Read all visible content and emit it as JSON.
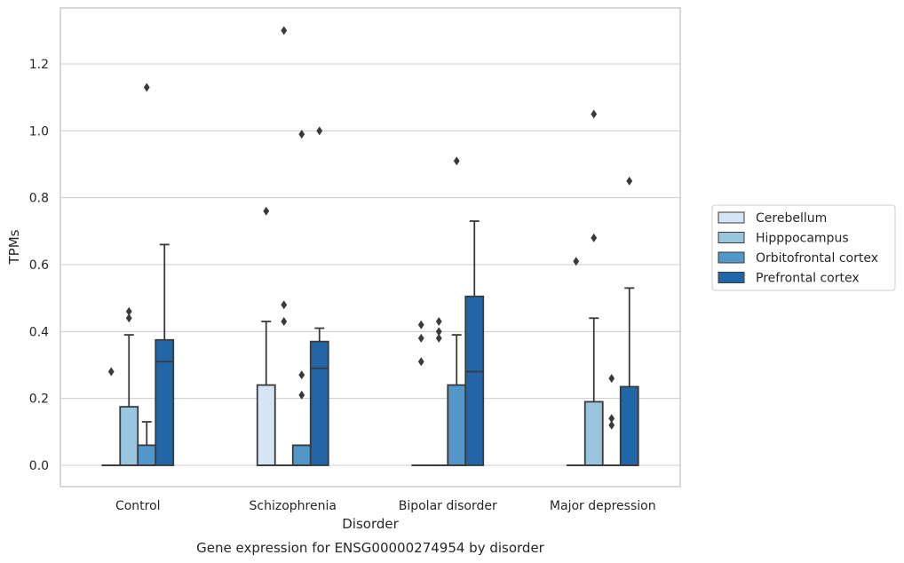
{
  "chart_data": {
    "type": "box",
    "title": "",
    "caption": "Gene expression for ENSG00000274954 by disorder",
    "xlabel": "Disorder",
    "ylabel": "TPMs",
    "ylim": [
      -0.065,
      1.38
    ],
    "yticks": [
      "0.0",
      "0.2",
      "0.4",
      "0.6",
      "0.8",
      "1.0",
      "1.2"
    ],
    "grid": "horizontal",
    "legend_position": "right",
    "categories": [
      "Control",
      "Schizophrenia",
      "Bipolar disorder",
      "Major depression"
    ],
    "series": [
      {
        "name": "Cerebellum",
        "color": "#d6e5f4",
        "boxes": [
          {
            "q1": 0,
            "median": 0,
            "q3": 0,
            "whisker_low": 0,
            "whisker_high": 0,
            "outliers": []
          },
          {
            "q1": 0,
            "median": 0,
            "q3": 0.24,
            "whisker_low": 0,
            "whisker_high": 0.43,
            "outliers": [
              0.76
            ]
          },
          {
            "q1": 0,
            "median": 0,
            "q3": 0,
            "whisker_low": 0,
            "whisker_high": 0,
            "outliers": [
              0.31,
              0.38,
              0.42
            ]
          },
          {
            "q1": 0,
            "median": 0,
            "q3": 0,
            "whisker_low": 0,
            "whisker_high": 0,
            "outliers": [
              0.61
            ]
          }
        ]
      },
      {
        "name": "Hipppocampus",
        "color": "#9ac5df",
        "boxes": [
          {
            "q1": 0,
            "median": 0,
            "q3": 0.175,
            "whisker_low": 0,
            "whisker_high": 0.39,
            "outliers": [
              0.44,
              0.46
            ]
          },
          {
            "q1": 0,
            "median": 0,
            "q3": 0,
            "whisker_low": 0,
            "whisker_high": 0,
            "outliers": [
              0.43,
              0.48,
              1.3
            ]
          },
          {
            "q1": 0,
            "median": 0,
            "q3": 0,
            "whisker_low": 0,
            "whisker_high": 0,
            "outliers": [
              0.38,
              0.4,
              0.43
            ]
          },
          {
            "q1": 0,
            "median": 0,
            "q3": 0.19,
            "whisker_low": 0,
            "whisker_high": 0.44,
            "outliers": [
              0.68,
              1.05
            ]
          }
        ]
      },
      {
        "name": "Orbitofrontal cortex",
        "color": "#5396c8",
        "boxes": [
          {
            "q1": 0,
            "median": 0,
            "q3": 0.06,
            "whisker_low": 0,
            "whisker_high": 0.13,
            "outliers": [
              1.13
            ]
          },
          {
            "q1": 0,
            "median": 0,
            "q3": 0.06,
            "whisker_low": 0,
            "whisker_high": 0.06,
            "outliers": [
              0.21,
              0.27,
              0.99
            ]
          },
          {
            "q1": 0,
            "median": 0,
            "q3": 0.24,
            "whisker_low": 0,
            "whisker_high": 0.39,
            "outliers": [
              0.91
            ]
          },
          {
            "q1": 0,
            "median": 0,
            "q3": 0,
            "whisker_low": 0,
            "whisker_high": 0,
            "outliers": [
              0.12,
              0.14,
              0.26
            ]
          }
        ]
      },
      {
        "name": "Prefrontal cortex",
        "color": "#2366a8",
        "boxes": [
          {
            "q1": 0,
            "median": 0.31,
            "q3": 0.375,
            "whisker_low": 0,
            "whisker_high": 0.66,
            "outliers": []
          },
          {
            "q1": 0,
            "median": 0.29,
            "q3": 0.37,
            "whisker_low": 0,
            "whisker_high": 0.41,
            "outliers": [
              1.0
            ]
          },
          {
            "q1": 0,
            "median": 0.28,
            "q3": 0.505,
            "whisker_low": 0,
            "whisker_high": 0.73,
            "outliers": []
          },
          {
            "q1": 0,
            "median": 0,
            "q3": 0.235,
            "whisker_low": 0,
            "whisker_high": 0.53,
            "outliers": [
              0.85
            ]
          }
        ]
      }
    ],
    "extra_outliers": [
      {
        "category": "Control",
        "x_offset": -1.5,
        "value": 0.28
      }
    ]
  }
}
